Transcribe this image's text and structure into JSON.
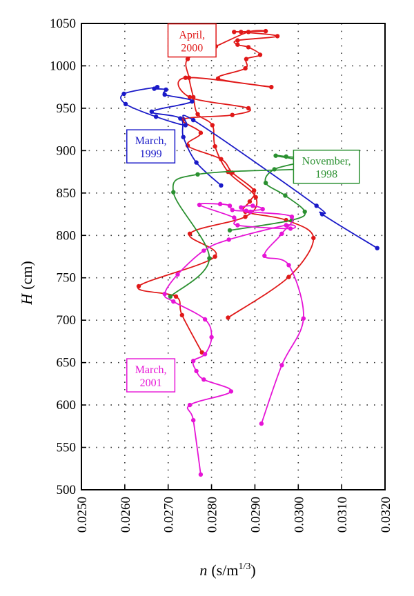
{
  "chart_data": {
    "type": "line",
    "title": "",
    "xlabel": {
      "symbol": "n",
      "unit": "(s/m",
      "exponent": "1/3",
      "close": ")"
    },
    "ylabel": {
      "symbol": "H",
      "unit": "(cm)"
    },
    "xlim": [
      0.025,
      0.032
    ],
    "ylim": [
      500,
      1050
    ],
    "xticks": [
      0.025,
      0.026,
      0.027,
      0.028,
      0.029,
      0.03,
      0.031,
      0.032
    ],
    "xtick_labels": [
      "0.0250",
      "0.0260",
      "0.0270",
      "0.0280",
      "0.0290",
      "0.0300",
      "0.0310",
      "0.0320"
    ],
    "yticks": [
      500,
      550,
      600,
      650,
      700,
      750,
      800,
      850,
      900,
      950,
      1000,
      1050
    ],
    "ytick_labels": [
      "500",
      "550",
      "600",
      "650",
      "700",
      "750",
      "800",
      "850",
      "900",
      "950",
      "1000",
      "1050"
    ],
    "grid": true,
    "series": [
      {
        "name_lines": [
          "April,",
          "2000"
        ],
        "color": "#e01818",
        "label_pos": [
          0.02755,
          1030
        ],
        "points": [
          [
            0.02838,
            703
          ],
          [
            0.02978,
            751
          ],
          [
            0.03035,
            797
          ],
          [
            0.02972,
            818
          ],
          [
            0.02878,
            828
          ],
          [
            0.02888,
            840
          ],
          [
            0.02898,
            853
          ],
          [
            0.02848,
            874
          ],
          [
            0.02822,
            890
          ],
          [
            0.02745,
            906
          ],
          [
            0.02775,
            921
          ],
          [
            0.02735,
            937
          ],
          [
            0.02848,
            942
          ],
          [
            0.02885,
            950
          ],
          [
            0.0275,
            963
          ],
          [
            0.0274,
            986
          ],
          [
            0.02938,
            975
          ],
          [
            0.02815,
            985
          ],
          [
            0.02878,
            997
          ],
          [
            0.0288,
            1008
          ],
          [
            0.02912,
            1013
          ],
          [
            0.02885,
            1022
          ],
          [
            0.0286,
            1025
          ],
          [
            0.0286,
            1030
          ],
          [
            0.02952,
            1035
          ],
          [
            0.02868,
            1040
          ],
          [
            0.02852,
            1040
          ],
          [
            0.02925,
            1041
          ],
          [
            0.02885,
            1040
          ],
          [
            0.0281,
            1023
          ],
          [
            0.02745,
            1008
          ],
          [
            0.02748,
            986
          ],
          [
            0.02758,
            963
          ],
          [
            0.02768,
            943
          ],
          [
            0.02802,
            930
          ],
          [
            0.02808,
            905
          ],
          [
            0.02838,
            875
          ],
          [
            0.02902,
            845
          ],
          [
            0.02878,
            822
          ],
          [
            0.0275,
            802
          ],
          [
            0.02808,
            775
          ],
          [
            0.02632,
            740
          ],
          [
            0.02718,
            728
          ],
          [
            0.02732,
            706
          ],
          [
            0.02778,
            662
          ]
        ]
      },
      {
        "name_lines": [
          "March,",
          "1999"
        ],
        "color": "#1a1ac8",
        "label_pos": [
          0.0266,
          905
        ],
        "points": [
          [
            0.02822,
            859
          ],
          [
            0.02765,
            886
          ],
          [
            0.02735,
            916
          ],
          [
            0.02728,
            938
          ],
          [
            0.02662,
            946
          ],
          [
            0.02755,
            958
          ],
          [
            0.02692,
            966
          ],
          [
            0.02695,
            972
          ],
          [
            0.02668,
            973
          ],
          [
            0.02675,
            975
          ],
          [
            0.02598,
            967
          ],
          [
            0.02602,
            955
          ],
          [
            0.02672,
            940
          ],
          [
            0.0274,
            930
          ],
          [
            0.02758,
            936
          ],
          [
            0.03042,
            835
          ],
          [
            0.03055,
            825
          ],
          [
            0.03182,
            785
          ]
        ]
      },
      {
        "name_lines": [
          "November,",
          "1998"
        ],
        "color": "#2a9030",
        "label_pos": [
          0.03065,
          881
        ],
        "points": [
          [
            0.02705,
            728
          ],
          [
            0.02795,
            773
          ],
          [
            0.02712,
            851
          ],
          [
            0.02768,
            872
          ],
          [
            0.03002,
            878
          ],
          [
            0.0303,
            880
          ],
          [
            0.03008,
            888
          ],
          [
            0.02948,
            894
          ],
          [
            0.02972,
            893
          ],
          [
            0.03025,
            889
          ],
          [
            0.02945,
            878
          ],
          [
            0.02925,
            862
          ],
          [
            0.0297,
            847
          ],
          [
            0.03015,
            828
          ],
          [
            0.02985,
            818
          ],
          [
            0.02842,
            806
          ]
        ]
      },
      {
        "name_lines": [
          "March,",
          "2001"
        ],
        "color": "#e614d6",
        "label_pos": [
          0.0266,
          635
        ],
        "points": [
          [
            0.02915,
            578
          ],
          [
            0.02962,
            647
          ],
          [
            0.03012,
            702
          ],
          [
            0.02978,
            765
          ],
          [
            0.02922,
            776
          ],
          [
            0.02962,
            802
          ],
          [
            0.02985,
            822
          ],
          [
            0.0289,
            828
          ],
          [
            0.02868,
            833
          ],
          [
            0.02895,
            835
          ],
          [
            0.02918,
            831
          ],
          [
            0.0288,
            829
          ],
          [
            0.02848,
            830
          ],
          [
            0.02842,
            835
          ],
          [
            0.0282,
            837
          ],
          [
            0.02772,
            836
          ],
          [
            0.02852,
            821
          ],
          [
            0.0286,
            812
          ],
          [
            0.02982,
            808
          ],
          [
            0.02972,
            812
          ],
          [
            0.0284,
            795
          ],
          [
            0.02782,
            782
          ],
          [
            0.02722,
            754
          ],
          [
            0.02692,
            731
          ],
          [
            0.02712,
            722
          ],
          [
            0.02785,
            701
          ],
          [
            0.028,
            680
          ],
          [
            0.02785,
            660
          ],
          [
            0.02758,
            652
          ],
          [
            0.02765,
            640
          ],
          [
            0.02782,
            630
          ],
          [
            0.02845,
            616
          ],
          [
            0.0275,
            600
          ],
          [
            0.02758,
            582
          ],
          [
            0.02775,
            518
          ]
        ]
      }
    ]
  }
}
